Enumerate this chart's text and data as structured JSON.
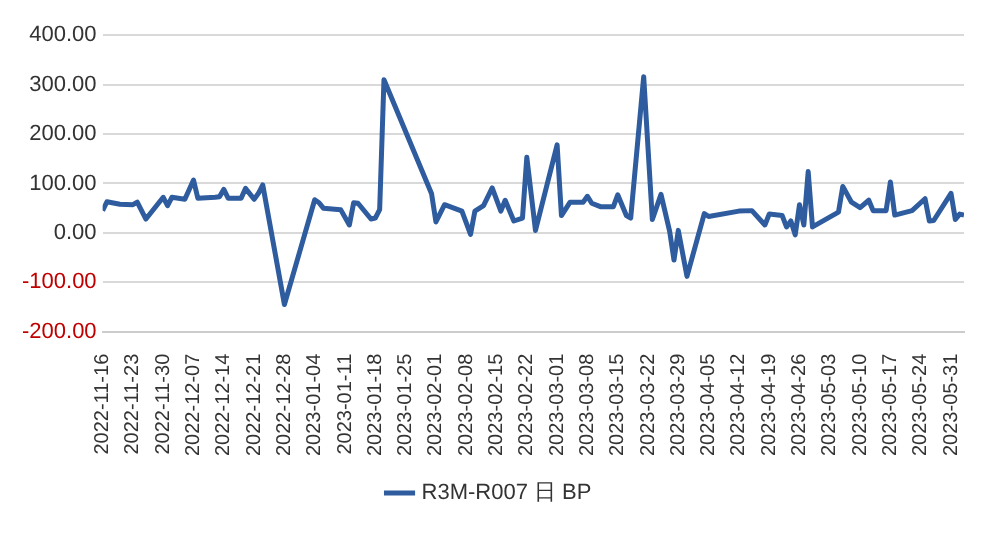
{
  "chart_data": {
    "type": "line",
    "x": [
      "2022-11-16",
      "2022-11-17",
      "2022-11-20",
      "2022-11-23",
      "2022-11-24",
      "2022-11-26",
      "2022-11-30",
      "2022-12-01",
      "2022-12-02",
      "2022-12-05",
      "2022-12-07",
      "2022-12-08",
      "2022-12-12",
      "2022-12-13",
      "2022-12-14",
      "2022-12-15",
      "2022-12-18",
      "2022-12-19",
      "2022-12-21",
      "2022-12-22",
      "2022-12-23",
      "2022-12-28",
      "2023-01-04",
      "2023-01-05",
      "2023-01-06",
      "2023-01-10",
      "2023-01-12",
      "2023-01-13",
      "2023-01-14",
      "2023-01-17",
      "2023-01-18",
      "2023-01-19",
      "2023-01-20",
      "2023-01-31",
      "2023-02-01",
      "2023-02-03",
      "2023-02-07",
      "2023-02-09",
      "2023-02-10",
      "2023-02-12",
      "2023-02-14",
      "2023-02-16",
      "2023-02-17",
      "2023-02-19",
      "2023-02-21",
      "2023-02-22",
      "2023-02-24",
      "2023-03-01",
      "2023-03-02",
      "2023-03-04",
      "2023-03-07",
      "2023-03-08",
      "2023-03-09",
      "2023-03-11",
      "2023-03-14",
      "2023-03-15",
      "2023-03-17",
      "2023-03-18",
      "2023-03-21",
      "2023-03-23",
      "2023-03-25",
      "2023-03-27",
      "2023-03-28",
      "2023-03-29",
      "2023-03-31",
      "2023-04-04",
      "2023-04-05",
      "2023-04-12",
      "2023-04-15",
      "2023-04-18",
      "2023-04-19",
      "2023-04-22",
      "2023-04-23",
      "2023-04-24",
      "2023-04-25",
      "2023-04-26",
      "2023-04-27",
      "2023-04-28",
      "2023-04-29",
      "2023-05-05",
      "2023-05-06",
      "2023-05-08",
      "2023-05-10",
      "2023-05-12",
      "2023-05-13",
      "2023-05-16",
      "2023-05-17",
      "2023-05-18",
      "2023-05-22",
      "2023-05-25",
      "2023-05-26",
      "2023-05-27",
      "2023-05-31",
      "2023-06-01",
      "2023-06-02",
      "2023-06-03"
    ],
    "series": [
      {
        "name": "R3M-R007 日 BP",
        "color": "#2e5c9e",
        "values": [
          45,
          63,
          58,
          57,
          62,
          28,
          72,
          55,
          72,
          68,
          107,
          70,
          72,
          73,
          88,
          70,
          70,
          90,
          68,
          80,
          97,
          -145,
          67,
          61,
          50,
          47,
          16,
          61,
          60,
          28,
          30,
          47,
          310,
          79,
          22,
          57,
          44,
          -3,
          44,
          55,
          91,
          44,
          66,
          24,
          30,
          153,
          5,
          178,
          35,
          62,
          62,
          74,
          60,
          53,
          53,
          77,
          35,
          30,
          316,
          27,
          78,
          3,
          -55,
          5,
          -88,
          39,
          33,
          44,
          45,
          16,
          38,
          35,
          12,
          24,
          -4,
          57,
          16,
          124,
          12,
          42,
          94,
          62,
          51,
          66,
          45,
          45,
          103,
          36,
          45,
          69,
          24,
          25,
          80,
          27,
          38,
          36
        ]
      }
    ],
    "xlim": [
      "2022-11-16",
      "2023-06-03"
    ],
    "xticks": [
      "2022-11-16",
      "2022-11-23",
      "2022-11-30",
      "2022-12-07",
      "2022-12-14",
      "2022-12-21",
      "2022-12-28",
      "2023-01-04",
      "2023-01-11",
      "2023-01-18",
      "2023-01-25",
      "2023-02-01",
      "2023-02-08",
      "2023-02-15",
      "2023-02-22",
      "2023-03-01",
      "2023-03-08",
      "2023-03-15",
      "2023-03-22",
      "2023-03-29",
      "2023-04-05",
      "2023-04-12",
      "2023-04-19",
      "2023-04-26",
      "2023-05-03",
      "2023-05-10",
      "2023-05-17",
      "2023-05-24",
      "2023-05-31"
    ],
    "ylim": [
      -200,
      400
    ],
    "yticks": [
      {
        "value": -200,
        "label": "-200.00"
      },
      {
        "value": -100,
        "label": "-100.00"
      },
      {
        "value": 0,
        "label": "0.00"
      },
      {
        "value": 100,
        "label": "100.00"
      },
      {
        "value": 200,
        "label": "200.00"
      },
      {
        "value": 300,
        "label": "300.00"
      },
      {
        "value": 400,
        "label": "400.00"
      }
    ],
    "grid": "y",
    "legend": "bottom",
    "marker": "none",
    "line_style": "solid"
  }
}
